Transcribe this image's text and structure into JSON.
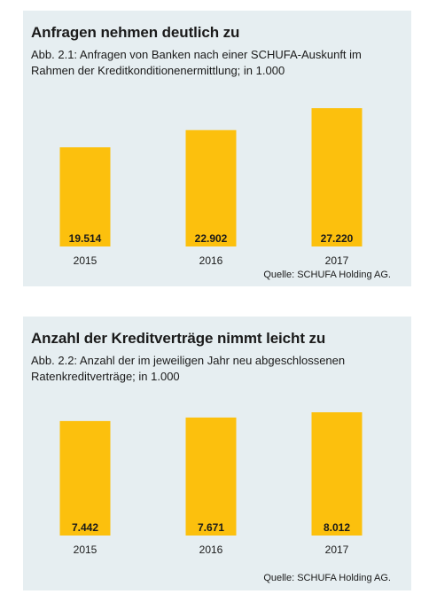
{
  "chart_data": [
    {
      "type": "bar",
      "title": "Anfragen nehmen deutlich zu",
      "subtitle": "Abb. 2.1: Anfragen von Banken nach einer SCHUFA-Auskunft im Rahmen der Kreditkonditionenermittlung; in 1.000",
      "categories": [
        "2015",
        "2016",
        "2017"
      ],
      "values": [
        19514,
        22902,
        27220
      ],
      "value_labels": [
        "19.514",
        "22.902",
        "27.220"
      ],
      "source": "Quelle: SCHUFA Holding AG.",
      "bar_color": "#fcc00d",
      "background": "#e6eef1",
      "grid": false,
      "ylim": [
        0,
        27220
      ]
    },
    {
      "type": "bar",
      "title": "Anzahl der Kreditverträge nimmt leicht zu",
      "subtitle": "Abb. 2.2: Anzahl der im jeweiligen Jahr neu abgeschlossenen Ratenkreditverträge; in 1.000",
      "categories": [
        "2015",
        "2016",
        "2017"
      ],
      "values": [
        7442,
        7671,
        8012
      ],
      "value_labels": [
        "7.442",
        "7.671",
        "8.012"
      ],
      "source": "Quelle: SCHUFA Holding AG.",
      "bar_color": "#fcc00d",
      "background": "#e6eef1",
      "grid": false,
      "ylim": [
        0,
        8012
      ]
    }
  ]
}
